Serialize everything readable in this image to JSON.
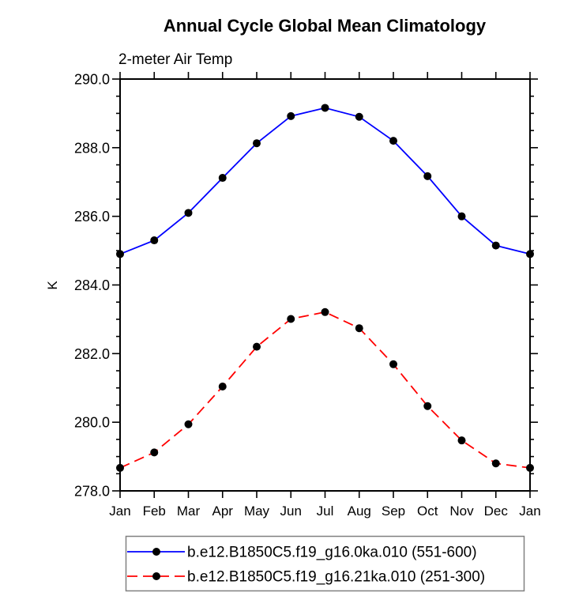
{
  "colors": {
    "series1": "#0000ff",
    "series2": "#ff0000",
    "marker": "#000000",
    "axis": "#000000",
    "legend_border": "#808080",
    "background": "#ffffff"
  },
  "chart_data": {
    "type": "line",
    "title": "Annual Cycle Global Mean Climatology",
    "subtitle": "2-meter Air Temp",
    "ylabel": "K",
    "xlabel": "",
    "categories": [
      "Jan",
      "Feb",
      "Mar",
      "Apr",
      "May",
      "Jun",
      "Jul",
      "Aug",
      "Sep",
      "Oct",
      "Nov",
      "Dec",
      "Jan"
    ],
    "ylim": [
      278.0,
      290.0
    ],
    "ytick_interval": 2.0,
    "yminor_interval": 0.5,
    "ytick_labels": [
      "278.0",
      "280.0",
      "282.0",
      "284.0",
      "286.0",
      "288.0",
      "290.0"
    ],
    "grid": false,
    "legend_position": "bottom",
    "series": [
      {
        "name": "b.e12.B1850C5.f19_g16.0ka.010 (551-600)",
        "color": "#0000ff",
        "line_style": "solid",
        "marker": "filled-circle",
        "marker_color": "#000000",
        "values": [
          284.9,
          285.3,
          286.1,
          287.12,
          288.13,
          288.92,
          289.16,
          288.9,
          288.2,
          287.17,
          286.0,
          285.15,
          284.9
        ]
      },
      {
        "name": "b.e12.B1850C5.f19_g16.21ka.010 (251-300)",
        "color": "#ff0000",
        "line_style": "dashed",
        "marker": "filled-circle",
        "marker_color": "#000000",
        "values": [
          278.67,
          279.12,
          279.94,
          281.04,
          282.2,
          283.01,
          283.21,
          282.74,
          281.69,
          280.47,
          279.47,
          278.8,
          278.67
        ]
      }
    ]
  }
}
